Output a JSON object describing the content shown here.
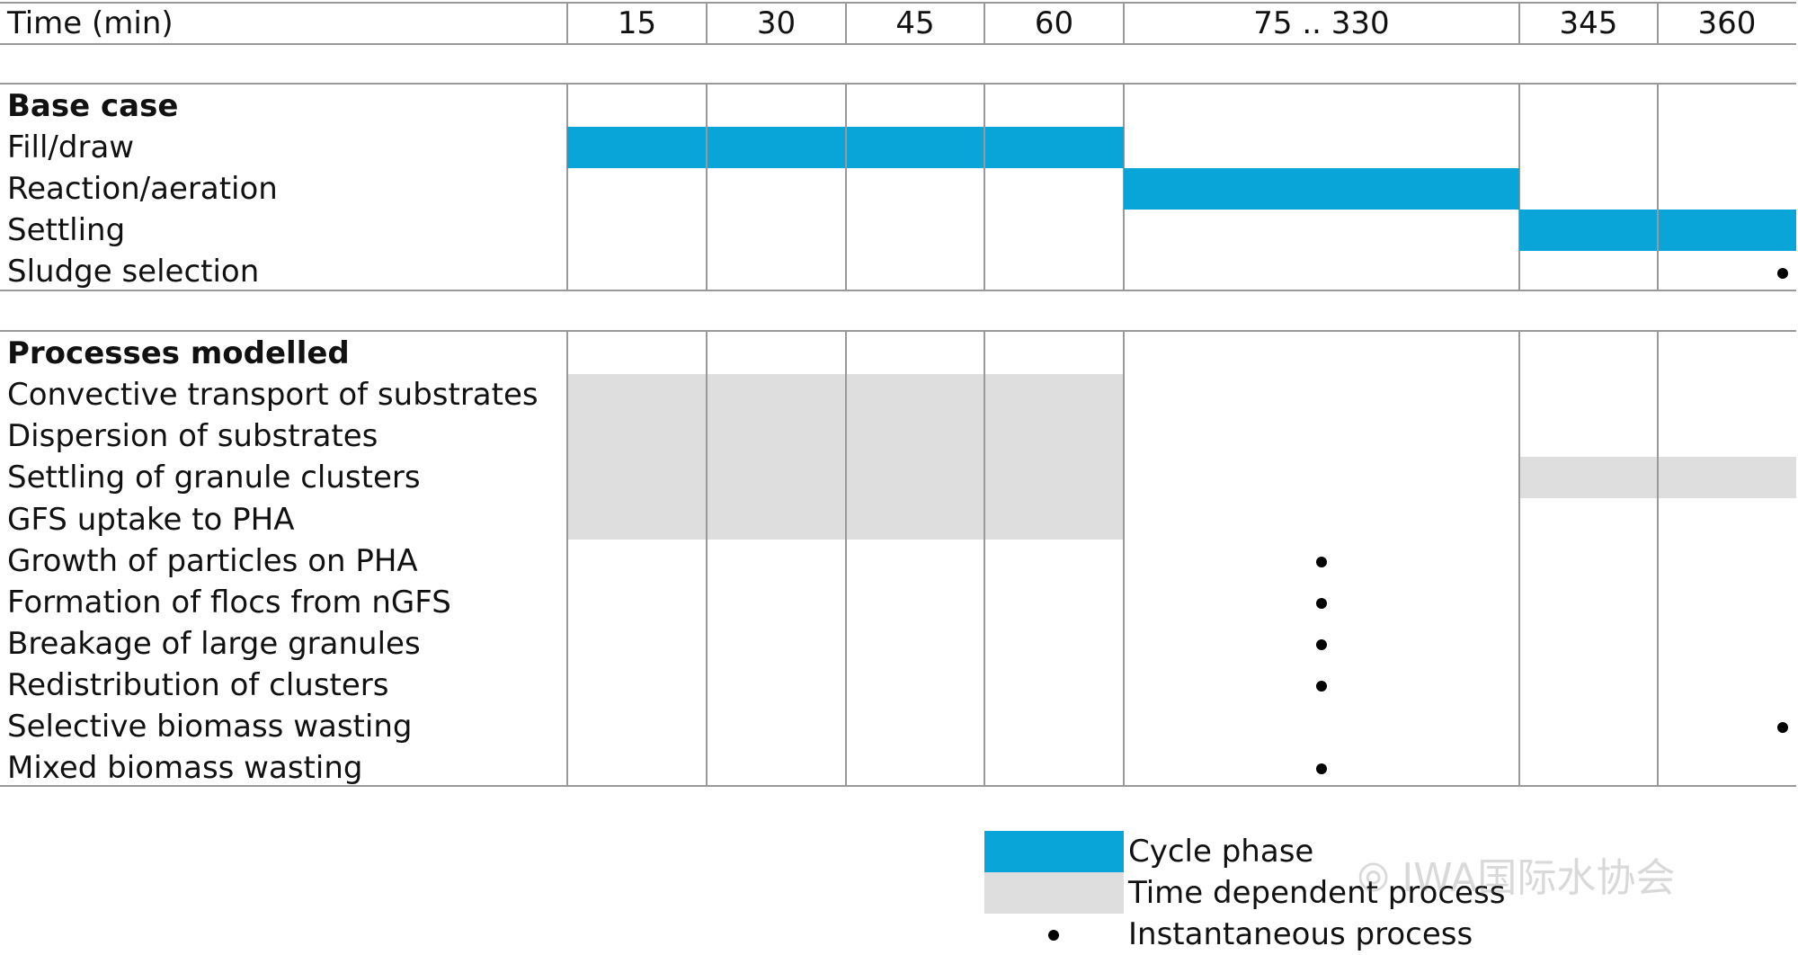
{
  "header": {
    "label": "Time (min)",
    "columns": [
      "15",
      "30",
      "45",
      "60",
      "75 .. 330",
      "345",
      "360"
    ]
  },
  "sections": [
    {
      "title": "Base case",
      "rows": [
        "Fill/draw",
        "Reaction/aeration",
        "Settling",
        "Sludge selection"
      ]
    },
    {
      "title": "Processes modelled",
      "rows": [
        "Convective transport of substrates",
        "Dispersion of substrates",
        "Settling of granule clusters",
        "GFS uptake to PHA",
        "Growth of particles on PHA",
        "Formation of flocs from nGFS",
        "Breakage of large granules",
        "Redistribution of clusters",
        "Selective biomass wasting",
        "Mixed biomass wasting"
      ]
    }
  ],
  "cycle_phases": [
    {
      "row": "Fill/draw",
      "columns": [
        "15",
        "30",
        "45",
        "60"
      ]
    },
    {
      "row": "Reaction/aeration",
      "columns": [
        "75 .. 330"
      ]
    },
    {
      "row": "Settling",
      "columns": [
        "345",
        "360"
      ]
    }
  ],
  "time_dependent": [
    {
      "rows": [
        "Convective transport of substrates",
        "Dispersion of substrates",
        "Settling of granule clusters",
        "GFS uptake to PHA"
      ],
      "columns": [
        "15",
        "30",
        "45",
        "60"
      ]
    },
    {
      "rows": [
        "Settling of granule clusters"
      ],
      "columns": [
        "345",
        "360"
      ]
    }
  ],
  "instantaneous": [
    {
      "row": "Sludge selection",
      "column": "360"
    },
    {
      "row": "Growth of particles on PHA",
      "column": "75 .. 330"
    },
    {
      "row": "Formation of flocs from nGFS",
      "column": "75 .. 330"
    },
    {
      "row": "Breakage of large granules",
      "column": "75 .. 330"
    },
    {
      "row": "Redistribution of clusters",
      "column": "75 .. 330"
    },
    {
      "row": "Selective biomass wasting",
      "column": "360"
    },
    {
      "row": "Mixed biomass wasting",
      "column": "75 .. 330"
    }
  ],
  "legend": [
    {
      "kind": "cycle",
      "label": "Cycle phase"
    },
    {
      "kind": "time",
      "label": "Time dependent process"
    },
    {
      "kind": "instant",
      "label": "Instantaneous process"
    }
  ],
  "colors": {
    "cycle": "#0aa5d8",
    "time": "#dedede",
    "grid": "#999999",
    "dot": "#000000"
  },
  "watermark": "IWA国际水协会"
}
